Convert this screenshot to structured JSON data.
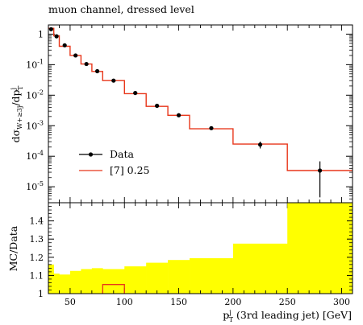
{
  "chart_data": [
    {
      "type": "line",
      "title": "muon channel, dressed level",
      "ylabel": "dσ_{W+≥3j}/dp_T^j",
      "yscale": "log",
      "ylim": [
        3e-06,
        2.0
      ],
      "xlim": [
        30,
        310
      ],
      "y_ticks": [
        {
          "value": 1,
          "label": "1"
        },
        {
          "value": 0.1,
          "label": "10^-1"
        },
        {
          "value": 0.01,
          "label": "10^-2"
        },
        {
          "value": 0.001,
          "label": "10^-3"
        },
        {
          "value": 0.0001,
          "label": "10^-4"
        },
        {
          "value": 1e-05,
          "label": "10^-5"
        }
      ],
      "legend": {
        "placement": "bottom-left"
      },
      "series": [
        {
          "name": "Data",
          "kind": "points",
          "x": [
            32.5,
            37.5,
            45,
            55,
            65,
            75,
            90,
            110,
            130,
            150,
            180,
            225,
            280
          ],
          "y": [
            1.45,
            0.85,
            0.43,
            0.2,
            0.105,
            0.061,
            0.03,
            0.0118,
            0.0045,
            0.0022,
            0.00083,
            0.00024,
            3.4e-05
          ],
          "yerr_low": [
            1.4,
            0.8,
            0.41,
            0.19,
            0.1,
            0.058,
            0.028,
            0.0112,
            0.0042,
            0.002,
            0.00074,
            0.00018,
            4.5e-06
          ],
          "yerr_high": [
            1.5,
            0.9,
            0.45,
            0.21,
            0.11,
            0.064,
            0.032,
            0.0124,
            0.0048,
            0.0024,
            0.00092,
            0.0003,
            6.8e-05
          ]
        },
        {
          "name": "[7] 0.25",
          "kind": "step",
          "color": "#e8361a",
          "edges": [
            30,
            35,
            40,
            50,
            60,
            70,
            80,
            100,
            120,
            140,
            160,
            200,
            250,
            310
          ],
          "values": [
            1.55,
            0.88,
            0.4,
            0.2,
            0.105,
            0.06,
            0.03,
            0.0112,
            0.0043,
            0.0022,
            0.00079,
            0.00025,
            3.4e-05
          ]
        }
      ]
    },
    {
      "type": "area",
      "ylabel": "MC/Data",
      "xlabel": "p_T^j (3rd leading jet) [GeV]",
      "xlim": [
        30,
        310
      ],
      "ylim": [
        1.0,
        1.5
      ],
      "x_ticks": [
        50,
        100,
        150,
        200,
        250,
        300
      ],
      "y_ticks": [
        1,
        1.1,
        1.2,
        1.3,
        1.4
      ],
      "series": [
        {
          "name": "uncertainty band",
          "color": "#ffff00",
          "edges": [
            30,
            35,
            40,
            50,
            60,
            70,
            80,
            100,
            120,
            140,
            160,
            200,
            250,
            310
          ],
          "upper": [
            1.16,
            1.11,
            1.105,
            1.125,
            1.135,
            1.14,
            1.135,
            1.15,
            1.17,
            1.185,
            1.195,
            1.275,
            1.5
          ],
          "lower": [
            1.0,
            1.0,
            1.0,
            1.0,
            1.0,
            1.0,
            1.0,
            1.0,
            1.0,
            1.0,
            1.0,
            1.0,
            1.0
          ]
        },
        {
          "name": "ratio [7] 0.25",
          "color": "#e8361a",
          "edges": [
            80,
            100
          ],
          "values": [
            1.05
          ]
        }
      ]
    }
  ]
}
